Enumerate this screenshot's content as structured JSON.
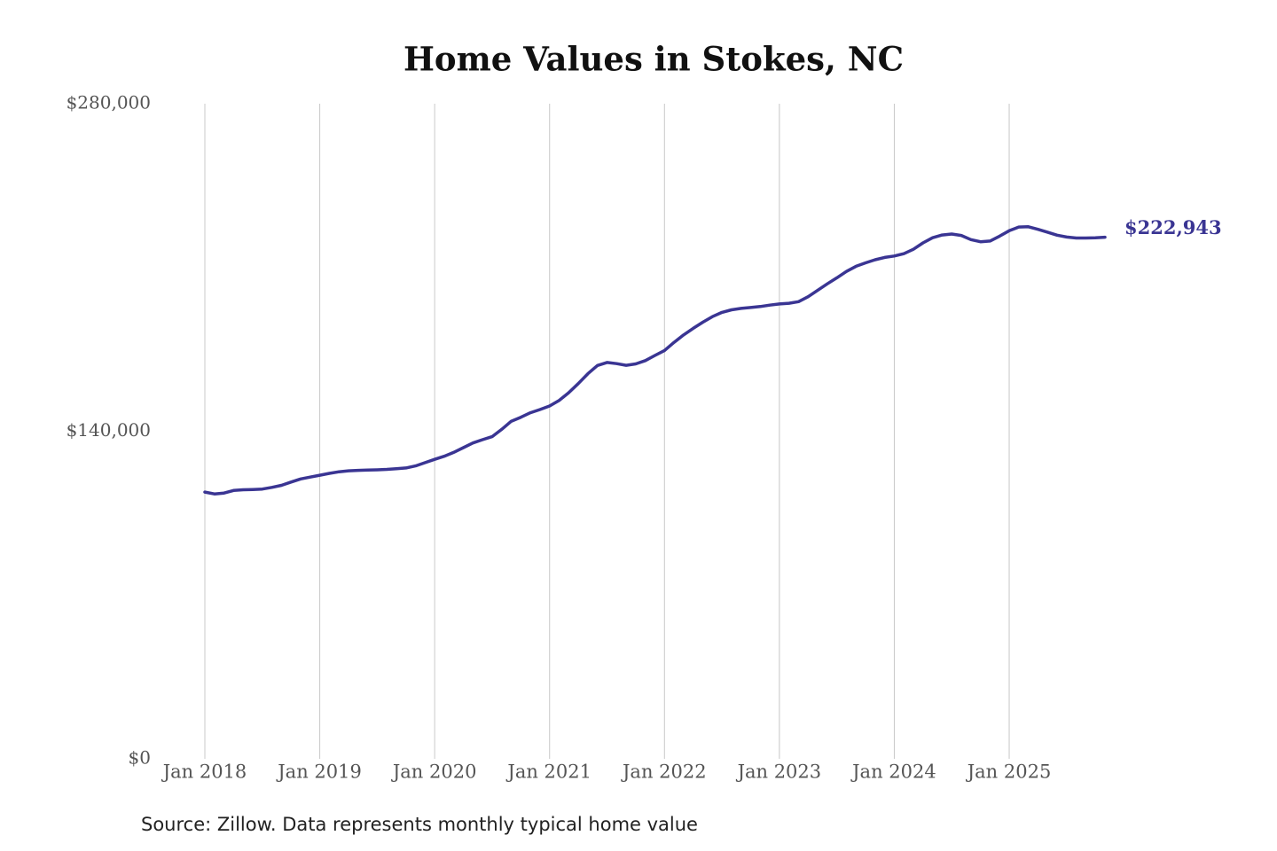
{
  "chart_data": {
    "type": "line",
    "title": "Home Values in Stokes, NC",
    "source": "Source: Zillow. Data represents monthly typical home value",
    "x": [
      "2018-01",
      "2018-02",
      "2018-03",
      "2018-04",
      "2018-05",
      "2018-06",
      "2018-07",
      "2018-08",
      "2018-09",
      "2018-10",
      "2018-11",
      "2018-12",
      "2019-01",
      "2019-02",
      "2019-03",
      "2019-04",
      "2019-05",
      "2019-06",
      "2019-07",
      "2019-08",
      "2019-09",
      "2019-10",
      "2019-11",
      "2019-12",
      "2020-01",
      "2020-02",
      "2020-03",
      "2020-04",
      "2020-05",
      "2020-06",
      "2020-07",
      "2020-08",
      "2020-09",
      "2020-10",
      "2020-11",
      "2020-12",
      "2021-01",
      "2021-02",
      "2021-03",
      "2021-04",
      "2021-05",
      "2021-06",
      "2021-07",
      "2021-08",
      "2021-09",
      "2021-10",
      "2021-11",
      "2021-12",
      "2022-01",
      "2022-02",
      "2022-03",
      "2022-04",
      "2022-05",
      "2022-06",
      "2022-07",
      "2022-08",
      "2022-09",
      "2022-10",
      "2022-11",
      "2022-12",
      "2023-01",
      "2023-02",
      "2023-03",
      "2023-04",
      "2023-05",
      "2023-06",
      "2023-07",
      "2023-08",
      "2023-09",
      "2023-10",
      "2023-11",
      "2023-12",
      "2024-01",
      "2024-02",
      "2024-03",
      "2024-04",
      "2024-05",
      "2024-06",
      "2024-07",
      "2024-08",
      "2024-09",
      "2024-10",
      "2024-11",
      "2024-12",
      "2025-01",
      "2025-02",
      "2025-03",
      "2025-04",
      "2025-05",
      "2025-06",
      "2025-07",
      "2025-08",
      "2025-09",
      "2025-10",
      "2025-11"
    ],
    "series": [
      {
        "name": "Home value",
        "color": "#3a3593",
        "values": [
          114000,
          113200,
          113600,
          114700,
          115000,
          115100,
          115300,
          116000,
          116900,
          118300,
          119600,
          120400,
          121200,
          122000,
          122700,
          123100,
          123300,
          123400,
          123500,
          123700,
          124000,
          124300,
          125200,
          126600,
          128000,
          129300,
          131000,
          133000,
          135000,
          136400,
          137700,
          140800,
          144300,
          146000,
          147900,
          149300,
          150800,
          153200,
          156500,
          160400,
          164600,
          168100,
          169400,
          168900,
          168200,
          168800,
          170200,
          172400,
          174500,
          178000,
          181200,
          184000,
          186600,
          189000,
          190800,
          191900,
          192500,
          192900,
          193300,
          193900,
          194400,
          194700,
          195400,
          197500,
          200300,
          203000,
          205600,
          208300,
          210500,
          212000,
          213300,
          214300,
          214900,
          215900,
          217800,
          220500,
          222700,
          223900,
          224300,
          223700,
          221900,
          221000,
          221300,
          223400,
          225700,
          227300,
          227400,
          226300,
          225100,
          223800,
          223000,
          222600,
          222600,
          222700,
          222943
        ],
        "value_labels": [
          null,
          null,
          null,
          null,
          null,
          null,
          null,
          null,
          null,
          null,
          null,
          null,
          null,
          null,
          null,
          null,
          null,
          null,
          null,
          null,
          null,
          null,
          null,
          null,
          null,
          null,
          null,
          null,
          null,
          null,
          null,
          null,
          null,
          null,
          null,
          null,
          null,
          null,
          null,
          null,
          null,
          null,
          null,
          null,
          null,
          null,
          null,
          null,
          null,
          null,
          null,
          null,
          null,
          null,
          null,
          null,
          null,
          null,
          null,
          null,
          null,
          null,
          null,
          null,
          null,
          null,
          null,
          null,
          null,
          null,
          null,
          null,
          null,
          null,
          null,
          null,
          null,
          null,
          null,
          null,
          null,
          null,
          null,
          null,
          null,
          null,
          null,
          null,
          null,
          null,
          null,
          null,
          null,
          null,
          "$222,943"
        ]
      }
    ],
    "xlim": [
      "2018-01",
      "2025-11"
    ],
    "xticks": [
      {
        "value": "2018-01",
        "label": "Jan 2018"
      },
      {
        "value": "2019-01",
        "label": "Jan 2019"
      },
      {
        "value": "2020-01",
        "label": "Jan 2020"
      },
      {
        "value": "2021-01",
        "label": "Jan 2021"
      },
      {
        "value": "2022-01",
        "label": "Jan 2022"
      },
      {
        "value": "2023-01",
        "label": "Jan 2023"
      },
      {
        "value": "2024-01",
        "label": "Jan 2024"
      },
      {
        "value": "2025-01",
        "label": "Jan 2025"
      }
    ],
    "ylim": [
      0,
      280000
    ],
    "yticks": [
      {
        "value": 0,
        "label": "$0"
      },
      {
        "value": 140000,
        "label": "$140,000"
      },
      {
        "value": 280000,
        "label": "$280,000"
      }
    ],
    "grid": "x"
  }
}
